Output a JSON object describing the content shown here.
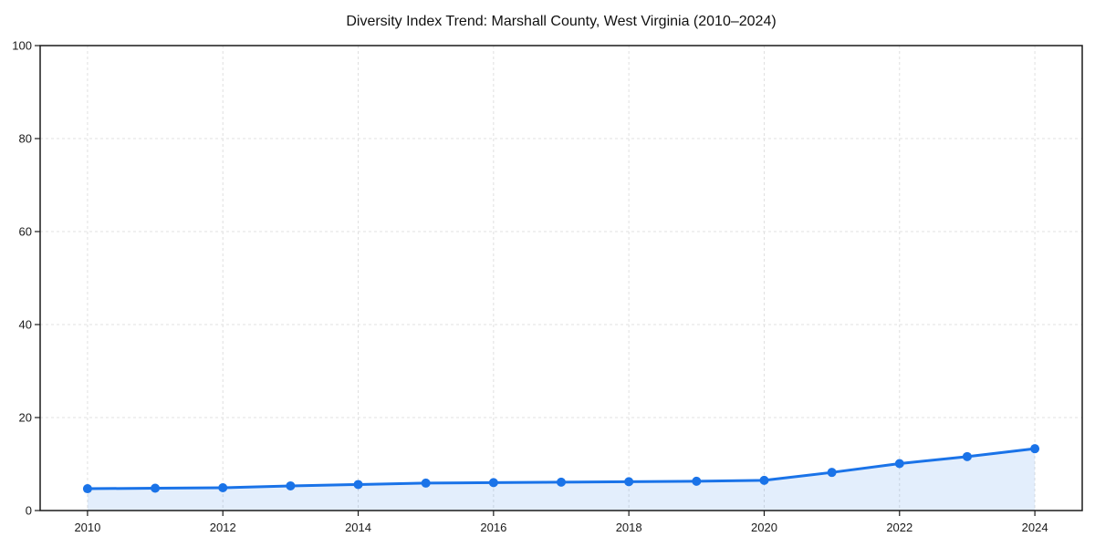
{
  "chart_data": {
    "type": "line",
    "title": "Diversity Index Trend: Marshall County, West Virginia (2010–2024)",
    "x": [
      2010,
      2011,
      2012,
      2013,
      2014,
      2015,
      2016,
      2017,
      2018,
      2019,
      2020,
      2021,
      2022,
      2023,
      2024
    ],
    "series": [
      {
        "name": "Diversity Index",
        "values": [
          4.7,
          4.8,
          4.9,
          5.3,
          5.6,
          5.9,
          6.0,
          6.1,
          6.2,
          6.3,
          6.5,
          8.2,
          10.1,
          11.6,
          13.3
        ]
      }
    ],
    "xlabel": "",
    "ylabel": "",
    "xlim": [
      2009.3,
      2024.7
    ],
    "ylim": [
      0,
      100
    ],
    "x_ticks": [
      2010,
      2012,
      2014,
      2016,
      2018,
      2020,
      2022,
      2024
    ],
    "y_ticks": [
      0,
      20,
      40,
      60,
      80,
      100
    ],
    "grid": true,
    "grid_style": "dashed",
    "legend": "none",
    "marker": "circle",
    "area_fill": true,
    "colors": {
      "line": "#1a73e8",
      "marker": "#1a73e8",
      "fill": "#1a73e8",
      "fill_opacity": 0.12,
      "grid": "#e0e0e0",
      "spine": "#1a1a1a",
      "tick_text": "#1a1a1a",
      "background": "#ffffff"
    }
  }
}
